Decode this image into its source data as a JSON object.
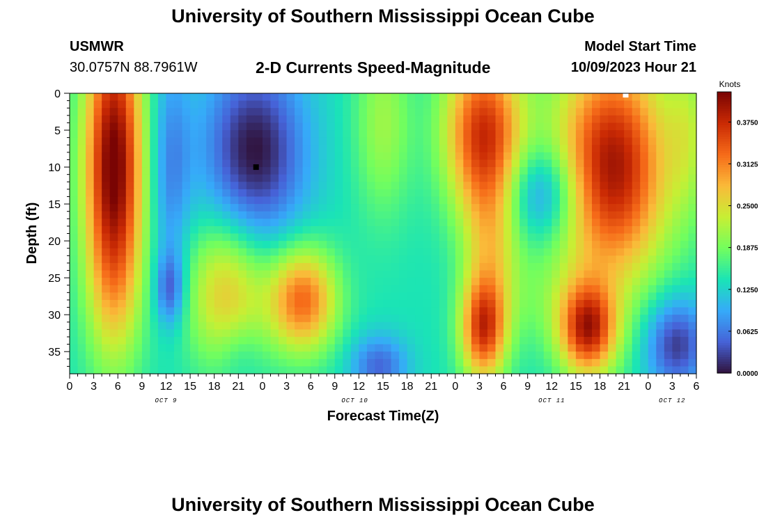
{
  "page": {
    "title_top": "University of Southern Mississippi Ocean Cube",
    "title_bottom": "University of Southern Mississippi Ocean Cube",
    "station": "USMWR",
    "coords": "30.0757N  88.7961W",
    "subtitle": "2-D Currents Speed-Magnitude",
    "model_start_label": "Model Start Time",
    "model_start_value": "10/09/2023 Hour 21"
  },
  "colors": {
    "colormap": [
      "#30123b",
      "#4662d7",
      "#36aaf9",
      "#1ae4b6",
      "#72fe5e",
      "#c7ef34",
      "#faba39",
      "#f66b19",
      "#ca2a04",
      "#7a0403"
    ],
    "marker_black": "#000000",
    "marker_white": "#ffffff"
  },
  "chart_data": {
    "type": "heatmap",
    "title": "2-D Currents Speed-Magnitude",
    "xlabel": "Forecast Time(Z)",
    "ylabel": "Depth (ft)",
    "x_unit": "hours since OCT 9 00Z",
    "xlim": [
      0,
      78
    ],
    "ylim": [
      38,
      0
    ],
    "y_ticks": [
      0,
      5,
      10,
      15,
      20,
      25,
      30,
      35
    ],
    "x_ticks": [
      {
        "h": 0,
        "label": "0"
      },
      {
        "h": 3,
        "label": "3"
      },
      {
        "h": 6,
        "label": "6"
      },
      {
        "h": 9,
        "label": "9"
      },
      {
        "h": 12,
        "label": "12"
      },
      {
        "h": 15,
        "label": "15"
      },
      {
        "h": 18,
        "label": "18"
      },
      {
        "h": 21,
        "label": "21"
      },
      {
        "h": 24,
        "label": "0"
      },
      {
        "h": 27,
        "label": "3"
      },
      {
        "h": 30,
        "label": "6"
      },
      {
        "h": 33,
        "label": "9"
      },
      {
        "h": 36,
        "label": "12"
      },
      {
        "h": 39,
        "label": "15"
      },
      {
        "h": 42,
        "label": "18"
      },
      {
        "h": 45,
        "label": "21"
      },
      {
        "h": 48,
        "label": "0"
      },
      {
        "h": 51,
        "label": "3"
      },
      {
        "h": 54,
        "label": "6"
      },
      {
        "h": 57,
        "label": "9"
      },
      {
        "h": 60,
        "label": "12"
      },
      {
        "h": 63,
        "label": "15"
      },
      {
        "h": 66,
        "label": "18"
      },
      {
        "h": 69,
        "label": "21"
      },
      {
        "h": 72,
        "label": "0"
      },
      {
        "h": 75,
        "label": "3"
      },
      {
        "h": 78,
        "label": "6"
      }
    ],
    "day_labels": [
      {
        "h": 12,
        "label": "OCT 9"
      },
      {
        "h": 35.5,
        "label": "OCT 10"
      },
      {
        "h": 60,
        "label": "OCT 11"
      },
      {
        "h": 75,
        "label": "OCT 12"
      }
    ],
    "colorbar": {
      "label": "Knots",
      "min": 0.0,
      "max": 0.42,
      "ticks": [
        {
          "v": 0.0,
          "label": "0.0000"
        },
        {
          "v": 0.0625,
          "label": "0.0625"
        },
        {
          "v": 0.125,
          "label": "0.1250"
        },
        {
          "v": 0.1875,
          "label": "0.1875"
        },
        {
          "v": 0.25,
          "label": "0.2500"
        },
        {
          "v": 0.3125,
          "label": "0.3125"
        },
        {
          "v": 0.375,
          "label": "0.3750"
        }
      ]
    },
    "background_speed": 0.14,
    "features": [
      {
        "h": 5.5,
        "d": 10,
        "sh": 2.6,
        "sd": 15,
        "a": 0.29
      },
      {
        "h": 5.5,
        "d": 28,
        "sh": 2.3,
        "sd": 6,
        "a": 0.02
      },
      {
        "h": 12.5,
        "d": 26.5,
        "sh": 1.3,
        "sd": 3.5,
        "a": -0.09
      },
      {
        "h": 12.5,
        "d": 10,
        "sh": 1.8,
        "sd": 11,
        "a": -0.07
      },
      {
        "h": 23,
        "d": 8,
        "sh": 4.5,
        "sd": 9,
        "a": -0.14
      },
      {
        "h": 19.5,
        "d": 27,
        "sh": 3.5,
        "sd": 7,
        "a": 0.13
      },
      {
        "h": 29,
        "d": 28,
        "sh": 3,
        "sd": 5,
        "a": 0.19
      },
      {
        "h": 21,
        "d": 35,
        "sh": 2,
        "sd": 3.5,
        "a": -0.03
      },
      {
        "h": 39,
        "d": 4,
        "sh": 2.5,
        "sd": 9,
        "a": 0.07
      },
      {
        "h": 38.5,
        "d": 37,
        "sh": 2.5,
        "sd": 3,
        "a": -0.09
      },
      {
        "h": 51.5,
        "d": 5,
        "sh": 3.5,
        "sd": 8,
        "a": 0.22
      },
      {
        "h": 52.5,
        "d": 20,
        "sh": 2.5,
        "sd": 8,
        "a": 0.1
      },
      {
        "h": 51.5,
        "d": 32,
        "sh": 2,
        "sd": 5,
        "a": 0.21
      },
      {
        "h": 59,
        "d": 13.5,
        "sh": 3.5,
        "sd": 4.5,
        "a": -0.1
      },
      {
        "h": 59,
        "d": 28,
        "sh": 3.5,
        "sd": 5,
        "a": 0.03
      },
      {
        "h": 67.5,
        "d": 10,
        "sh": 5,
        "sd": 11,
        "a": 0.26
      },
      {
        "h": 64.5,
        "d": 32,
        "sh": 2.5,
        "sd": 4.5,
        "a": 0.23
      },
      {
        "h": 75.5,
        "d": 34,
        "sh": 2.7,
        "sd": 4.5,
        "a": -0.12
      },
      {
        "h": 77,
        "d": 5,
        "sh": 1.8,
        "sd": 8,
        "a": 0.06
      }
    ],
    "markers": [
      {
        "h": 23.2,
        "d": 10,
        "color": "#000000"
      },
      {
        "h": 69.2,
        "d": 0.2,
        "color": "#ffffff"
      }
    ]
  }
}
